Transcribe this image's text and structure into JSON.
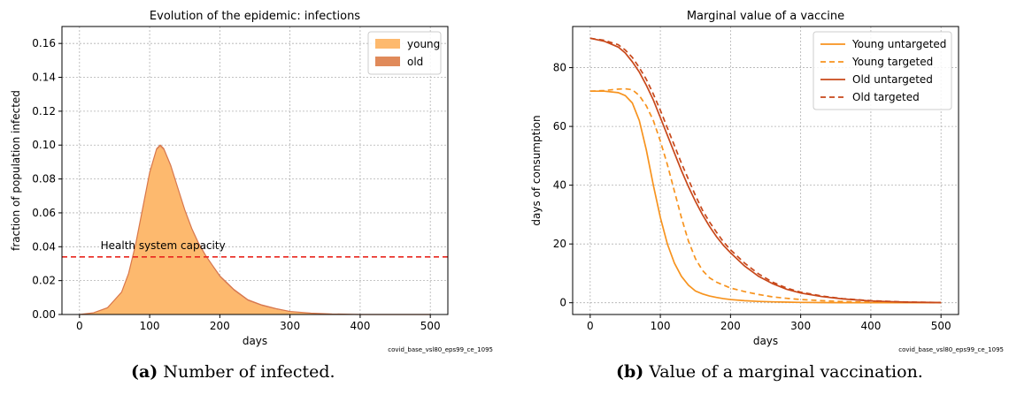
{
  "chart_data": [
    {
      "type": "area",
      "title": "Evolution of the epidemic: infections",
      "xlabel": "days",
      "ylabel": "fraction of population infected",
      "xlim": [
        -25,
        525
      ],
      "ylim": [
        0,
        0.17
      ],
      "xticks": [
        0,
        100,
        200,
        300,
        400,
        500
      ],
      "yticks": [
        0.0,
        0.02,
        0.04,
        0.06,
        0.08,
        0.1,
        0.12,
        0.14,
        0.16
      ],
      "grid": true,
      "legend": "top-right",
      "stacked": true,
      "x": [
        0,
        20,
        40,
        60,
        70,
        80,
        90,
        100,
        110,
        115,
        120,
        130,
        140,
        150,
        160,
        170,
        180,
        190,
        200,
        220,
        240,
        260,
        280,
        300,
        330,
        360,
        400,
        450,
        500
      ],
      "series": [
        {
          "name": "young",
          "color": "#fdb96e",
          "values": [
            0.0,
            0.001,
            0.004,
            0.013,
            0.024,
            0.041,
            0.062,
            0.083,
            0.097,
            0.099,
            0.097,
            0.087,
            0.074,
            0.061,
            0.05,
            0.041,
            0.034,
            0.028,
            0.022,
            0.014,
            0.008,
            0.005,
            0.003,
            0.0015,
            0.0006,
            0.0002,
            0.0,
            0.0,
            0.0
          ]
        },
        {
          "name": "old",
          "color": "#e08a5a",
          "values": [
            0.0,
            0.0,
            0.0,
            0.0002,
            0.0003,
            0.0004,
            0.0006,
            0.0008,
            0.0009,
            0.001,
            0.001,
            0.001,
            0.0009,
            0.0008,
            0.0008,
            0.0008,
            0.0007,
            0.0007,
            0.0008,
            0.0008,
            0.0007,
            0.0006,
            0.0005,
            0.0003,
            0.0002,
            0.0001,
            0.0,
            0.0,
            0.0
          ]
        }
      ],
      "annotations": [
        {
          "text": "Health system capacity",
          "y": 0.034,
          "color": "#e8261e",
          "style": "dashed"
        }
      ],
      "footnote": "covid_base_vsl80_eps99_ce_1095"
    },
    {
      "type": "line",
      "title": "Marginal value of a vaccine",
      "xlabel": "days",
      "ylabel": "days of consumption",
      "xlim": [
        -25,
        525
      ],
      "ylim": [
        -4,
        94
      ],
      "xticks": [
        0,
        100,
        200,
        300,
        400,
        500
      ],
      "yticks": [
        0,
        20,
        40,
        60,
        80
      ],
      "grid": true,
      "legend": "top-right",
      "x": [
        0,
        20,
        40,
        50,
        60,
        70,
        80,
        90,
        100,
        110,
        120,
        130,
        140,
        150,
        160,
        170,
        180,
        190,
        200,
        220,
        240,
        260,
        280,
        300,
        330,
        360,
        400,
        450,
        500
      ],
      "series": [
        {
          "name": "Young untargeted",
          "color": "#f7931e",
          "style": "solid",
          "values": [
            72,
            72,
            71.5,
            70.5,
            68,
            62,
            52,
            40,
            29,
            20,
            13.5,
            9,
            6,
            4,
            3,
            2.3,
            1.8,
            1.4,
            1.1,
            0.7,
            0.45,
            0.3,
            0.2,
            0.12,
            0.06,
            0.03,
            0.0,
            0.0,
            0.0
          ]
        },
        {
          "name": "Young targeted",
          "color": "#f7931e",
          "style": "dashed",
          "values": [
            72,
            72.2,
            72.7,
            72.8,
            72.5,
            70.5,
            67,
            62,
            55,
            47,
            38,
            29,
            21,
            15,
            11,
            8.5,
            7,
            6,
            5,
            3.8,
            2.8,
            2,
            1.5,
            1.1,
            0.7,
            0.4,
            0.2,
            0.08,
            0.02
          ]
        },
        {
          "name": "Old untargeted",
          "color": "#c8481a",
          "style": "solid",
          "values": [
            90,
            89,
            87,
            85,
            82,
            78.5,
            74,
            69,
            63,
            57,
            51,
            45,
            39.5,
            34.5,
            30,
            26,
            22.5,
            19.5,
            17,
            12.5,
            9,
            6.5,
            4.6,
            3.3,
            2.1,
            1.3,
            0.6,
            0.2,
            0.05
          ]
        },
        {
          "name": "Old targeted",
          "color": "#c8481a",
          "style": "dashed",
          "values": [
            90,
            89.3,
            87.8,
            86,
            83.5,
            80,
            76,
            71,
            65.5,
            59.5,
            53.5,
            47.5,
            42,
            36.5,
            31.5,
            27.5,
            24,
            20.7,
            18,
            13.5,
            9.8,
            7,
            5,
            3.6,
            2.3,
            1.4,
            0.7,
            0.25,
            0.07
          ]
        }
      ],
      "footnote": "covid_base_vsl80_eps99_ce_1095"
    }
  ],
  "captions": {
    "a": {
      "label": "(a)",
      "text": "Number of infected."
    },
    "b": {
      "label": "(b)",
      "text": "Value of a marginal vaccination."
    }
  }
}
